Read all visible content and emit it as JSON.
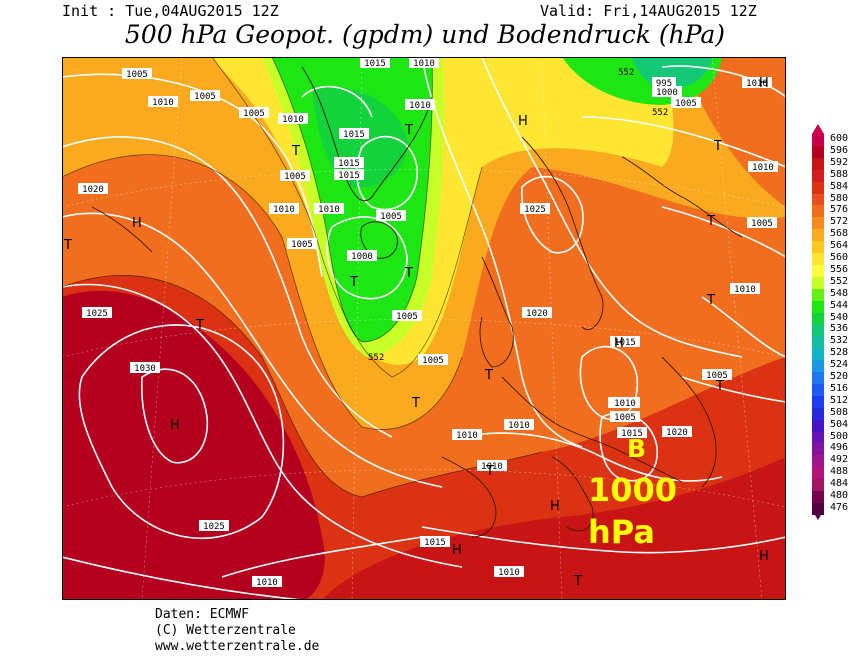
{
  "header": {
    "init": "Init : Tue,04AUG2015 12Z",
    "valid": "Valid: Fri,14AUG2015 12Z",
    "title": "500 hPa Geopot. (gpdm) und Bodendruck (hPa)"
  },
  "colorbar": {
    "levels": [
      "600",
      "596",
      "592",
      "588",
      "584",
      "580",
      "576",
      "572",
      "568",
      "564",
      "560",
      "556",
      "552",
      "548",
      "544",
      "540",
      "536",
      "532",
      "528",
      "524",
      "520",
      "516",
      "512",
      "508",
      "504",
      "500",
      "496",
      "492",
      "488",
      "484",
      "480",
      "476"
    ],
    "colors": [
      "#c8004b",
      "#b4001e",
      "#c81414",
      "#d21e1e",
      "#dc3214",
      "#e6501e",
      "#f06e1e",
      "#f58c1e",
      "#faaa1e",
      "#ffc81e",
      "#ffe632",
      "#ffff3c",
      "#c8ff28",
      "#64f014",
      "#1ee614",
      "#14d23c",
      "#14c878",
      "#14bea0",
      "#14b4c8",
      "#1e96e6",
      "#1e78f0",
      "#1e5af0",
      "#1e3cf0",
      "#2828dc",
      "#4614c8",
      "#6414b4",
      "#8214a0",
      "#a0148c",
      "#b41478",
      "#a01464",
      "#780050",
      "#500040"
    ]
  },
  "map": {
    "pressure_labels": [
      "1005",
      "1010",
      "1005",
      "1005",
      "1010",
      "1015",
      "1010",
      "1010",
      "1005",
      "1015",
      "1015",
      "1015",
      "1005",
      "1010",
      "1010",
      "1020",
      "1005",
      "1000",
      "1005",
      "1025",
      "1025",
      "1020",
      "1030",
      "1025",
      "1010",
      "1010",
      "1010",
      "1010",
      "1015",
      "1010",
      "1005",
      "1010",
      "1005",
      "1005",
      "1010",
      "1015",
      "1010",
      "1020",
      "1015",
      "1010",
      "1005",
      "995",
      "1000",
      "1005",
      "1010"
    ],
    "contour_labels": [
      "552",
      "552",
      "552"
    ],
    "high_symbol": "H",
    "low_symbol": "T",
    "annotation_letter": "B",
    "annotation_value": "1000",
    "annotation_unit": "hPa",
    "annotation_color": "#ffff00"
  },
  "footer": {
    "data_source": "Daten: ECMWF",
    "copyright": "(C) Wetterzentrale",
    "website": "www.wetterzentrale.de"
  }
}
